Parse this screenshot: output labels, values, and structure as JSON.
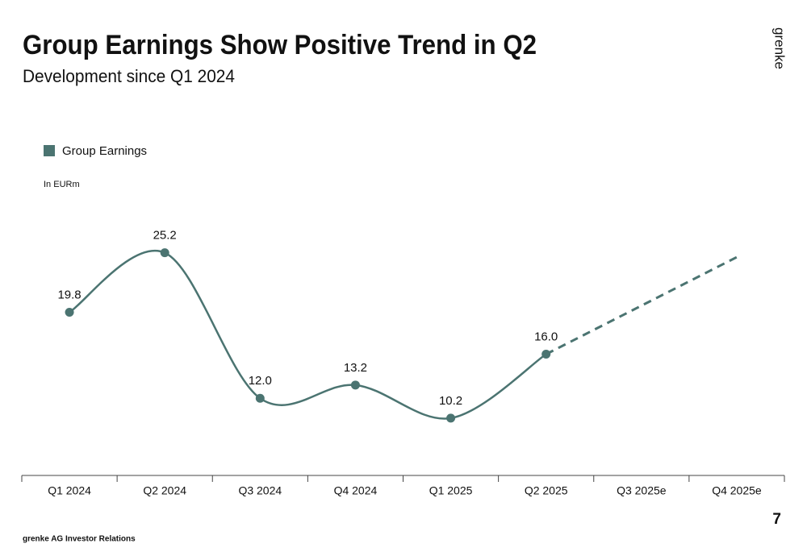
{
  "title": "Group Earnings Show Positive Trend in Q2",
  "subtitle": "Development since Q1 2024",
  "brand": "grenke",
  "page_number": "7",
  "footer": "grenke AG Investor Relations",
  "chart_data": {
    "type": "line",
    "unit_note": "In EURm",
    "categories": [
      "Q1 2024",
      "Q2 2024",
      "Q3 2024",
      "Q4 2024",
      "Q1 2025",
      "Q2 2025",
      "Q3 2025e",
      "Q4 2025e"
    ],
    "series": [
      {
        "name": "Group Earnings",
        "color": "#4b7471",
        "smooth": true,
        "markers": true,
        "values": [
          19.8,
          25.2,
          12.0,
          13.2,
          10.2,
          16.0,
          null,
          null
        ],
        "value_labels": [
          "19.8",
          "25.2",
          "12.0",
          "13.2",
          "10.2",
          "16.0",
          null,
          null
        ]
      },
      {
        "color": "#4b7471",
        "dashed": true,
        "values": [
          null,
          null,
          null,
          null,
          null,
          16.0,
          20.4,
          24.8
        ]
      }
    ],
    "ylim": [
      5,
      30
    ],
    "legend": "top-left"
  }
}
